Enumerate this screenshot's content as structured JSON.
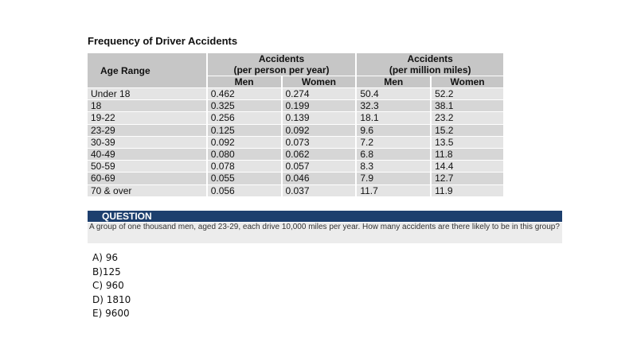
{
  "title": "Frequency of Driver Accidents",
  "table": {
    "age_header": "Age Range",
    "group1_line1": "Accidents",
    "group1_line2": "(per person per year)",
    "group2_line1": "Accidents",
    "group2_line2": "(per million miles)",
    "men": "Men",
    "women": "Women",
    "rows": [
      {
        "age": "Under 18",
        "pp_men": "0.462",
        "pp_women": "0.274",
        "pm_men": "50.4",
        "pm_women": "52.2"
      },
      {
        "age": "18",
        "pp_men": "0.325",
        "pp_women": "0.199",
        "pm_men": "32.3",
        "pm_women": "38.1"
      },
      {
        "age": "19-22",
        "pp_men": "0.256",
        "pp_women": "0.139",
        "pm_men": "18.1",
        "pm_women": "23.2"
      },
      {
        "age": "23-29",
        "pp_men": "0.125",
        "pp_women": "0.092",
        "pm_men": "9.6",
        "pm_women": "15.2"
      },
      {
        "age": "30-39",
        "pp_men": "0.092",
        "pp_women": "0.073",
        "pm_men": "7.2",
        "pm_women": "13.5"
      },
      {
        "age": "40-49",
        "pp_men": "0.080",
        "pp_women": "0.062",
        "pm_men": "6.8",
        "pm_women": "11.8"
      },
      {
        "age": "50-59",
        "pp_men": "0.078",
        "pp_women": "0.057",
        "pm_men": "8.3",
        "pm_women": "14.4"
      },
      {
        "age": "60-69",
        "pp_men": "0.055",
        "pp_women": "0.046",
        "pm_men": "7.9",
        "pm_women": "12.7"
      },
      {
        "age": "70 & over",
        "pp_men": "0.056",
        "pp_women": "0.037",
        "pm_men": "11.7",
        "pm_women": "11.9"
      }
    ]
  },
  "question": {
    "label": "QUESTION",
    "text": "A group of one thousand men, aged 23-29, each drive 10,000 miles per year. How many accidents are there likely to be in this group?"
  },
  "options": [
    "A) 96",
    "B)125",
    "C) 960",
    "D) 1810",
    "E) 9600"
  ]
}
